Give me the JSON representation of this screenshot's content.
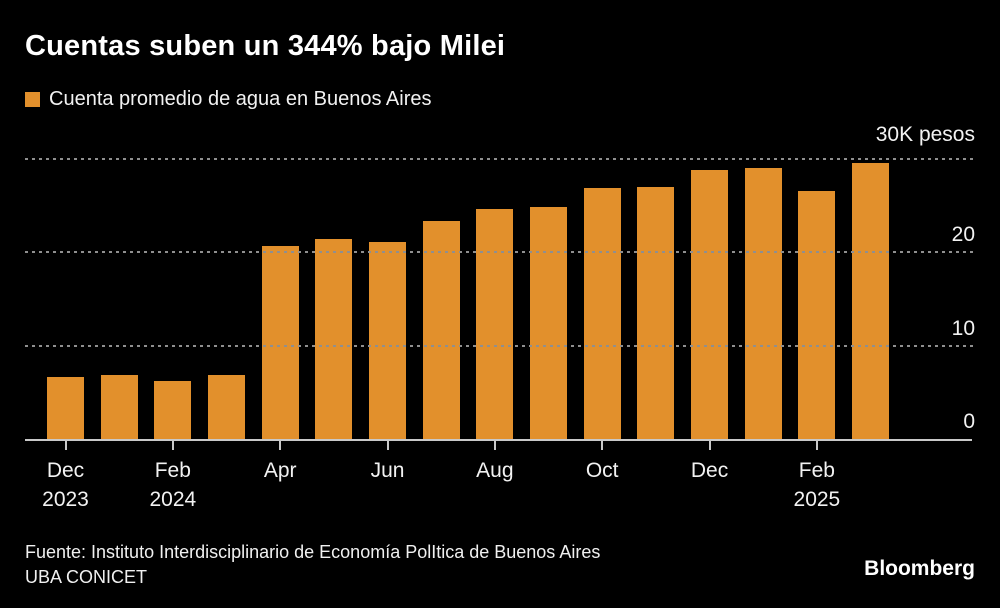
{
  "header": {
    "title": "Cuentas suben un 344% bajo Milei",
    "legend_label": "Cuenta promedio de agua en Buenos Aires"
  },
  "colors": {
    "background": "#000000",
    "bar": "#E2902C",
    "gridline": "#8F8F8F",
    "axis_line": "#C9C9C9",
    "text": "#F2F2F2"
  },
  "chart_data": {
    "type": "bar",
    "title": "Cuentas suben un 344% bajo Milei",
    "series_label": "Cuenta promedio de agua en Buenos Aires",
    "unit": "K pesos",
    "categories": [
      "Dec 2023",
      "Jan 2024",
      "Feb 2024",
      "Mar 2024",
      "Apr 2024",
      "May 2024",
      "Jun 2024",
      "Jul 2024",
      "Aug 2024",
      "Sep 2024",
      "Oct 2024",
      "Nov 2024",
      "Dec 2024",
      "Jan 2025",
      "Feb 2025",
      "Mar 2025"
    ],
    "values": [
      6.6,
      6.8,
      6.2,
      6.8,
      20.6,
      21.4,
      21.1,
      23.3,
      24.6,
      24.8,
      26.8,
      27.0,
      28.8,
      29.0,
      26.5,
      29.5
    ],
    "ylim": [
      0,
      30
    ],
    "grid": true,
    "legend_position": "top-left",
    "y_axis_side": "right",
    "y_ticks": [
      {
        "value": 30,
        "label": "30K pesos"
      },
      {
        "value": 20,
        "label": "20"
      },
      {
        "value": 10,
        "label": "10"
      },
      {
        "value": 0,
        "label": "0"
      }
    ],
    "x_tick_labels": [
      {
        "bar_index": 0,
        "line1": "Dec",
        "line2": "2023"
      },
      {
        "bar_index": 2,
        "line1": "Feb",
        "line2": "2024"
      },
      {
        "bar_index": 4,
        "line1": "Apr",
        "line2": ""
      },
      {
        "bar_index": 6,
        "line1": "Jun",
        "line2": ""
      },
      {
        "bar_index": 8,
        "line1": "Aug",
        "line2": ""
      },
      {
        "bar_index": 10,
        "line1": "Oct",
        "line2": ""
      },
      {
        "bar_index": 12,
        "line1": "Dec",
        "line2": ""
      },
      {
        "bar_index": 14,
        "line1": "Feb",
        "line2": "2025"
      }
    ]
  },
  "footer": {
    "source_line1": "Fuente: Instituto Interdisciplinario de Economía PolItica de Buenos Aires",
    "source_line2": "UBA CONICET",
    "brand": "Bloomberg"
  }
}
